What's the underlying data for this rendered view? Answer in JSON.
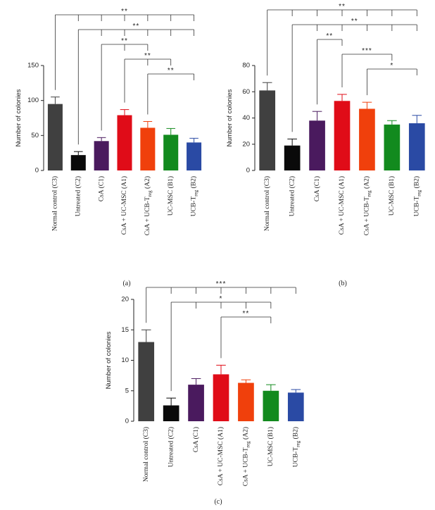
{
  "chart_data": [
    {
      "type": "bar",
      "panel_label": "(a)",
      "ylabel": "Number of colonies",
      "ylim": [
        0,
        150
      ],
      "yticks": [
        "0",
        "50",
        "100",
        "150"
      ],
      "categories": [
        "Normal control (C3)",
        "Untreated (C2)",
        "CsA (C1)",
        "CsA + UC-MSC (A1)",
        "CsA + UCB-Treg (A2)",
        "UC-MSC (B1)",
        "UCB-Treg (B2)"
      ],
      "values": [
        95,
        22,
        42,
        79,
        61,
        51,
        40
      ],
      "errors": [
        10,
        5,
        5,
        8,
        9,
        9,
        6
      ],
      "colors": [
        "#404040",
        "#0a0a0a",
        "#4a1a5e",
        "#e00c18",
        "#f0400c",
        "#128a1e",
        "#2a4aa4"
      ],
      "significance": [
        {
          "label": "**",
          "from": 0,
          "to": [
            1,
            2,
            3,
            4,
            5,
            6
          ]
        },
        {
          "label": "**",
          "from": 1,
          "to": [
            2,
            3,
            4,
            5,
            6
          ]
        },
        {
          "label": "**",
          "from": 2,
          "to": [
            3,
            4
          ]
        },
        {
          "label": "**",
          "from": 3,
          "to": [
            4,
            5
          ]
        },
        {
          "label": "**",
          "from": 4,
          "to": [
            6
          ]
        }
      ]
    },
    {
      "type": "bar",
      "panel_label": "(b)",
      "ylabel": "Number of colonies",
      "ylim": [
        0,
        80
      ],
      "yticks": [
        "0",
        "20",
        "40",
        "60",
        "80"
      ],
      "categories": [
        "Normal control (C3)",
        "Untreated (C2)",
        "CsA (C1)",
        "CsA + UC-MSC (A1)",
        "CsA + UCB-Treg (A2)",
        "UC-MSC (B1)",
        "UCB-Treg (B2)"
      ],
      "values": [
        61,
        19,
        38,
        53,
        47,
        35,
        36
      ],
      "errors": [
        6,
        5,
        7,
        5,
        5,
        3,
        6
      ],
      "colors": [
        "#404040",
        "#0a0a0a",
        "#4a1a5e",
        "#e00c18",
        "#f0400c",
        "#128a1e",
        "#2a4aa4"
      ],
      "significance": [
        {
          "label": "**",
          "from": 0,
          "to": [
            1,
            2,
            3,
            4,
            5,
            6
          ]
        },
        {
          "label": "**",
          "from": 1,
          "to": [
            2,
            3,
            4,
            5,
            6
          ]
        },
        {
          "label": "**",
          "from": 2,
          "to": [
            3
          ]
        },
        {
          "label": "***",
          "from": 3,
          "to": [
            5
          ]
        },
        {
          "label": "*",
          "from": 4,
          "to": [
            6
          ]
        }
      ]
    },
    {
      "type": "bar",
      "panel_label": "(c)",
      "ylabel": "Number of colonies",
      "ylim": [
        0,
        20
      ],
      "yticks": [
        "0",
        "5",
        "10",
        "15",
        "20"
      ],
      "categories": [
        "Normal control (C3)",
        "Untreated (C2)",
        "CsA (C1)",
        "CsA + UC-MSC (A1)",
        "CsA + UCB-Treg (A2)",
        "UC-MSC (B1)",
        "UCB-Treg (B2)"
      ],
      "values": [
        13,
        2.6,
        6,
        7.7,
        6.3,
        5,
        4.7
      ],
      "errors": [
        2,
        1.2,
        1,
        1.5,
        0.5,
        1,
        0.5
      ],
      "colors": [
        "#404040",
        "#0a0a0a",
        "#4a1a5e",
        "#e00c18",
        "#f0400c",
        "#128a1e",
        "#2a4aa4"
      ],
      "significance": [
        {
          "label": "***",
          "from": 0,
          "to": [
            1,
            2,
            3,
            4,
            5,
            6
          ]
        },
        {
          "label": "*",
          "from": 1,
          "to": [
            2,
            3,
            4,
            5
          ]
        },
        {
          "label": "**",
          "from": 3,
          "to": [
            5
          ]
        }
      ]
    }
  ]
}
